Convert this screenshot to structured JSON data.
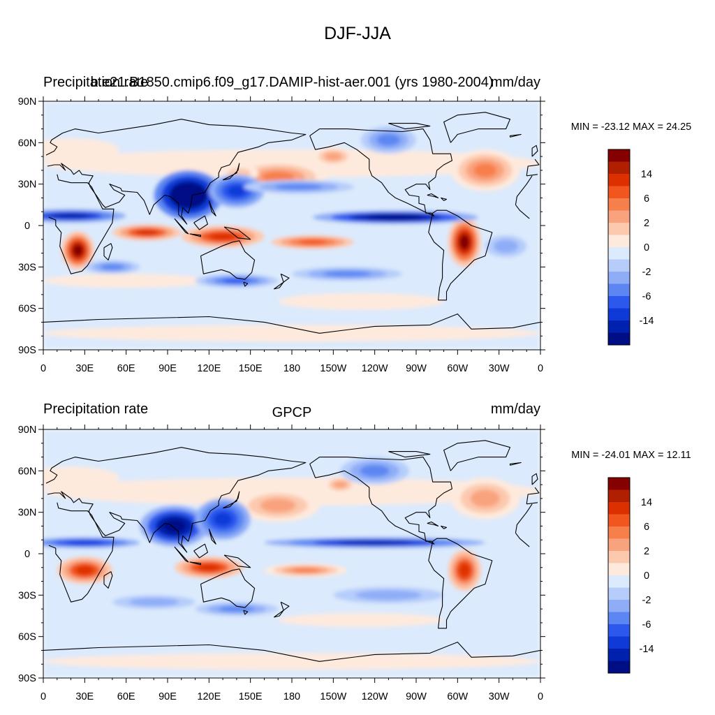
{
  "figure_title": "DJF-JJA",
  "colors": {
    "levels": [
      "#850000",
      "#b02000",
      "#dd3000",
      "#f2561f",
      "#f77f4b",
      "#f9a37e",
      "#fcc9ae",
      "#feeadd",
      "#dbeafc",
      "#b6cdfb",
      "#8fadf7",
      "#5c87f2",
      "#2c58ee",
      "#0f3ad8",
      "#0020ae",
      "#000e86"
    ],
    "coast": "#000000",
    "frame": "#000000"
  },
  "chart_data": [
    {
      "type": "heatmap",
      "title_left": "Precipitation rate",
      "title_center": "b.e21.B1850.cmip6.f09_g17.DAMIP-hist-aer.001 (yrs 1980-2004)",
      "title_right": "mm/day",
      "stats": "MIN = -23.12 MAX =  24.25",
      "min": -23.12,
      "max": 24.25,
      "xlabels": [
        "0",
        "30E",
        "60E",
        "90E",
        "120E",
        "150E",
        "180",
        "150W",
        "120W",
        "90W",
        "60W",
        "30W",
        "0"
      ],
      "ylabels": [
        "90N",
        "60N",
        "30N",
        "0",
        "30S",
        "60S",
        "90S"
      ],
      "xlim": [
        0,
        360
      ],
      "ylim": [
        -90,
        90
      ],
      "colorbar_labels": [
        "14",
        "6",
        "2",
        "0",
        "-2",
        "-6",
        "-14"
      ],
      "blobs": [
        {
          "lon": 170,
          "lat": 35,
          "rx": 35,
          "ry": 12,
          "v": 4
        },
        {
          "lon": 142,
          "lat": 38,
          "rx": 14,
          "ry": 6,
          "v": 2
        },
        {
          "lon": 210,
          "lat": 50,
          "rx": 15,
          "ry": 7,
          "v": 3
        },
        {
          "lon": 320,
          "lat": 40,
          "rx": 25,
          "ry": 15,
          "v": 4
        },
        {
          "lon": 20,
          "lat": 55,
          "rx": 35,
          "ry": 8,
          "v": 1
        },
        {
          "lon": 25,
          "lat": -18,
          "rx": 12,
          "ry": 14,
          "v": 8
        },
        {
          "lon": 75,
          "lat": -5,
          "rx": 25,
          "ry": 6,
          "v": 6
        },
        {
          "lon": 130,
          "lat": -8,
          "rx": 30,
          "ry": 8,
          "v": 6
        },
        {
          "lon": 195,
          "lat": -12,
          "rx": 30,
          "ry": 5,
          "v": 5
        },
        {
          "lon": 305,
          "lat": -12,
          "rx": 12,
          "ry": 18,
          "v": 8
        },
        {
          "lon": 60,
          "lat": -40,
          "rx": 60,
          "ry": 5,
          "v": 1
        },
        {
          "lon": 230,
          "lat": -55,
          "rx": 60,
          "ry": 6,
          "v": 1
        },
        {
          "lon": 105,
          "lat": 22,
          "rx": 25,
          "ry": 18,
          "v": -9
        },
        {
          "lon": 140,
          "lat": 25,
          "rx": 20,
          "ry": 12,
          "v": -5
        },
        {
          "lon": 20,
          "lat": 7,
          "rx": 40,
          "ry": 5,
          "v": -6
        },
        {
          "lon": 255,
          "lat": 6,
          "rx": 60,
          "ry": 5,
          "v": -8
        },
        {
          "lon": 185,
          "lat": 28,
          "rx": 40,
          "ry": 5,
          "v": -3
        },
        {
          "lon": 250,
          "lat": 62,
          "rx": 20,
          "ry": 10,
          "v": -3
        },
        {
          "lon": 140,
          "lat": -40,
          "rx": 30,
          "ry": 5,
          "v": -4
        },
        {
          "lon": 220,
          "lat": -35,
          "rx": 40,
          "ry": 5,
          "v": -3
        },
        {
          "lon": 50,
          "lat": -30,
          "rx": 20,
          "ry": 5,
          "v": -3
        },
        {
          "lon": 335,
          "lat": -15,
          "rx": 15,
          "ry": 8,
          "v": -2
        }
      ]
    },
    {
      "type": "heatmap",
      "title_left": "Precipitation rate",
      "title_center": "GPCP",
      "title_right": "mm/day",
      "stats": "MIN = -24.01 MAX =  12.11",
      "min": -24.01,
      "max": 12.11,
      "xlabels": [
        "0",
        "30E",
        "60E",
        "90E",
        "120E",
        "150E",
        "180",
        "150W",
        "120W",
        "90W",
        "60W",
        "30W",
        "0"
      ],
      "ylabels": [
        "90N",
        "60N",
        "30N",
        "0",
        "30S",
        "60S",
        "90S"
      ],
      "xlim": [
        0,
        360
      ],
      "ylim": [
        -90,
        90
      ],
      "colorbar_labels": [
        "14",
        "6",
        "2",
        "0",
        "-2",
        "-6",
        "-14"
      ],
      "blobs": [
        {
          "lon": 170,
          "lat": 35,
          "rx": 30,
          "ry": 12,
          "v": 3
        },
        {
          "lon": 215,
          "lat": 50,
          "rx": 12,
          "ry": 6,
          "v": 3
        },
        {
          "lon": 320,
          "lat": 40,
          "rx": 25,
          "ry": 15,
          "v": 3
        },
        {
          "lon": 20,
          "lat": 55,
          "rx": 35,
          "ry": 8,
          "v": 1
        },
        {
          "lon": 30,
          "lat": -12,
          "rx": 20,
          "ry": 10,
          "v": 6
        },
        {
          "lon": 120,
          "lat": -10,
          "rx": 25,
          "ry": 8,
          "v": 6
        },
        {
          "lon": 190,
          "lat": -12,
          "rx": 30,
          "ry": 5,
          "v": 4
        },
        {
          "lon": 305,
          "lat": -12,
          "rx": 12,
          "ry": 15,
          "v": 6
        },
        {
          "lon": 230,
          "lat": -48,
          "rx": 60,
          "ry": 5,
          "v": 1
        },
        {
          "lon": 95,
          "lat": 20,
          "rx": 25,
          "ry": 15,
          "v": -8
        },
        {
          "lon": 130,
          "lat": 25,
          "rx": 20,
          "ry": 15,
          "v": -5
        },
        {
          "lon": 240,
          "lat": 8,
          "rx": 80,
          "ry": 4,
          "v": -6
        },
        {
          "lon": 30,
          "lat": 8,
          "rx": 40,
          "ry": 4,
          "v": -5
        },
        {
          "lon": 240,
          "lat": 60,
          "rx": 25,
          "ry": 10,
          "v": -3
        },
        {
          "lon": 140,
          "lat": -40,
          "rx": 30,
          "ry": 5,
          "v": -3
        },
        {
          "lon": 250,
          "lat": -30,
          "rx": 40,
          "ry": 6,
          "v": -2
        },
        {
          "lon": 80,
          "lat": -35,
          "rx": 30,
          "ry": 5,
          "v": -2
        }
      ]
    }
  ],
  "coastlines": [
    [
      [
        -18,
        15
      ],
      [
        -17,
        21
      ],
      [
        -10,
        30
      ],
      [
        -6,
        36
      ],
      [
        10,
        37
      ],
      [
        11,
        33
      ],
      [
        20,
        31
      ],
      [
        32,
        31
      ],
      [
        35,
        28
      ],
      [
        43,
        12
      ],
      [
        51,
        12
      ],
      [
        50,
        2
      ],
      [
        40,
        -15
      ],
      [
        35,
        -24
      ],
      [
        32,
        -29
      ],
      [
        28,
        -33
      ],
      [
        20,
        -35
      ],
      [
        18,
        -30
      ],
      [
        12,
        -15
      ],
      [
        13,
        -5
      ],
      [
        9,
        0
      ],
      [
        9,
        4
      ],
      [
        4,
        6
      ],
      [
        -8,
        5
      ],
      [
        -15,
        11
      ],
      [
        -18,
        15
      ]
    ],
    [
      [
        44,
        -16
      ],
      [
        49,
        -13
      ],
      [
        50,
        -16
      ],
      [
        47,
        -25
      ],
      [
        44,
        -22
      ],
      [
        44,
        -16
      ]
    ],
    [
      [
        -10,
        36
      ],
      [
        -9,
        43
      ],
      [
        -1,
        44
      ],
      [
        -4,
        48
      ],
      [
        2,
        51
      ],
      [
        8,
        54
      ],
      [
        10,
        57
      ],
      [
        5,
        60
      ],
      [
        6,
        62
      ],
      [
        14,
        67
      ],
      [
        23,
        70
      ],
      [
        40,
        67
      ],
      [
        60,
        70
      ],
      [
        80,
        73
      ],
      [
        100,
        77
      ],
      [
        120,
        73
      ],
      [
        140,
        72
      ],
      [
        160,
        70
      ],
      [
        180,
        67
      ],
      [
        190,
        66
      ],
      [
        180,
        62
      ],
      [
        163,
        60
      ],
      [
        156,
        57
      ],
      [
        141,
        53
      ],
      [
        135,
        44
      ],
      [
        129,
        42
      ],
      [
        127,
        38
      ],
      [
        127,
        35
      ],
      [
        121,
        31
      ],
      [
        117,
        24
      ],
      [
        108,
        22
      ],
      [
        107,
        16
      ],
      [
        105,
        9
      ],
      [
        101,
        13
      ],
      [
        100,
        7
      ],
      [
        104,
        1
      ],
      [
        98,
        8
      ],
      [
        98,
        16
      ],
      [
        92,
        21
      ],
      [
        88,
        22
      ],
      [
        80,
        15
      ],
      [
        77,
        8
      ],
      [
        73,
        18
      ],
      [
        68,
        24
      ],
      [
        57,
        25
      ],
      [
        56,
        27
      ],
      [
        48,
        30
      ],
      [
        51,
        26
      ],
      [
        57,
        23
      ],
      [
        59,
        22
      ],
      [
        55,
        17
      ],
      [
        45,
        13
      ],
      [
        43,
        15
      ],
      [
        39,
        21
      ],
      [
        34,
        28
      ],
      [
        33,
        31
      ],
      [
        36,
        36
      ],
      [
        28,
        37
      ],
      [
        26,
        40
      ],
      [
        22,
        37
      ],
      [
        20,
        40
      ],
      [
        13,
        45
      ],
      [
        16,
        40
      ],
      [
        12,
        44
      ],
      [
        8,
        44
      ],
      [
        3,
        43
      ],
      [
        -2,
        37
      ],
      [
        -10,
        36
      ]
    ],
    [
      [
        95,
        5
      ],
      [
        105,
        -6
      ],
      [
        103,
        -5
      ],
      [
        95,
        5
      ]
    ],
    [
      [
        106,
        -6
      ],
      [
        114,
        -7
      ],
      [
        114,
        -8
      ],
      [
        106,
        -6
      ]
    ],
    [
      [
        109,
        2
      ],
      [
        113,
        -3
      ],
      [
        119,
        1
      ],
      [
        117,
        7
      ],
      [
        109,
        2
      ]
    ],
    [
      [
        120,
        18
      ],
      [
        122,
        13
      ],
      [
        125,
        7
      ],
      [
        122,
        10
      ],
      [
        120,
        18
      ]
    ],
    [
      [
        131,
        -1
      ],
      [
        141,
        -3
      ],
      [
        150,
        -10
      ],
      [
        141,
        -9
      ],
      [
        131,
        -1
      ]
    ],
    [
      [
        130,
        33
      ],
      [
        135,
        34
      ],
      [
        141,
        40
      ],
      [
        142,
        45
      ],
      [
        140,
        38
      ],
      [
        130,
        33
      ]
    ],
    [
      [
        114,
        -22
      ],
      [
        129,
        -15
      ],
      [
        137,
        -12
      ],
      [
        142,
        -11
      ],
      [
        146,
        -19
      ],
      [
        153,
        -25
      ],
      [
        151,
        -34
      ],
      [
        146,
        -39
      ],
      [
        140,
        -38
      ],
      [
        135,
        -34
      ],
      [
        129,
        -32
      ],
      [
        116,
        -35
      ],
      [
        114,
        -22
      ]
    ],
    [
      [
        145,
        -41
      ],
      [
        148,
        -42
      ],
      [
        146,
        -44
      ],
      [
        145,
        -41
      ]
    ],
    [
      [
        172,
        -35
      ],
      [
        178,
        -38
      ],
      [
        174,
        -41
      ],
      [
        172,
        -35
      ]
    ],
    [
      [
        167,
        -46
      ],
      [
        174,
        -41
      ],
      [
        171,
        -45
      ],
      [
        167,
        -46
      ]
    ],
    [
      [
        193,
        65
      ],
      [
        200,
        70
      ],
      [
        220,
        70
      ],
      [
        235,
        69
      ],
      [
        260,
        68
      ],
      [
        275,
        70
      ],
      [
        280,
        62
      ],
      [
        282,
        52
      ],
      [
        295,
        52
      ],
      [
        296,
        47
      ],
      [
        290,
        44
      ],
      [
        285,
        40
      ],
      [
        284,
        35
      ],
      [
        279,
        31
      ],
      [
        280,
        26
      ],
      [
        277,
        30
      ],
      [
        270,
        30
      ],
      [
        262,
        26
      ],
      [
        265,
        22
      ],
      [
        272,
        21
      ],
      [
        272,
        16
      ],
      [
        276,
        15
      ],
      [
        277,
        9
      ],
      [
        281,
        9
      ],
      [
        283,
        7
      ],
      [
        276,
        10
      ],
      [
        270,
        13
      ],
      [
        264,
        16
      ],
      [
        255,
        20
      ],
      [
        250,
        24
      ],
      [
        245,
        31
      ],
      [
        238,
        36
      ],
      [
        236,
        41
      ],
      [
        236,
        48
      ],
      [
        227,
        55
      ],
      [
        218,
        60
      ],
      [
        207,
        57
      ],
      [
        197,
        55
      ],
      [
        195,
        60
      ],
      [
        193,
        65
      ]
    ],
    [
      [
        282,
        9
      ],
      [
        285,
        11
      ],
      [
        292,
        11
      ],
      [
        300,
        7
      ],
      [
        310,
        0
      ],
      [
        325,
        -5
      ],
      [
        320,
        -22
      ],
      [
        312,
        -25
      ],
      [
        302,
        -35
      ],
      [
        295,
        -42
      ],
      [
        292,
        -48
      ],
      [
        292,
        -54
      ],
      [
        286,
        -54
      ],
      [
        287,
        -45
      ],
      [
        289,
        -38
      ],
      [
        289,
        -28
      ],
      [
        290,
        -18
      ],
      [
        283,
        -12
      ],
      [
        279,
        -5
      ],
      [
        280,
        0
      ],
      [
        282,
        9
      ]
    ],
    [
      [
        278,
        22
      ],
      [
        283,
        21
      ],
      [
        286,
        20
      ],
      [
        281,
        23
      ],
      [
        278,
        22
      ]
    ],
    [
      [
        290,
        18
      ],
      [
        292,
        19
      ],
      [
        288,
        20
      ],
      [
        290,
        18
      ]
    ],
    [
      [
        295,
        60
      ],
      [
        300,
        66
      ],
      [
        315,
        70
      ],
      [
        335,
        70
      ],
      [
        338,
        77
      ],
      [
        320,
        82
      ],
      [
        300,
        80
      ],
      [
        290,
        75
      ],
      [
        295,
        60
      ]
    ],
    [
      [
        338,
        64
      ],
      [
        346,
        66
      ],
      [
        338,
        65
      ],
      [
        338,
        64
      ]
    ],
    [
      [
        354,
        50
      ],
      [
        358,
        54
      ],
      [
        357,
        58
      ],
      [
        354,
        56
      ],
      [
        354,
        50
      ]
    ],
    [
      [
        250,
        74
      ],
      [
        270,
        74
      ],
      [
        280,
        72
      ],
      [
        262,
        70
      ],
      [
        250,
        74
      ]
    ],
    [
      [
        0,
        -70
      ],
      [
        40,
        -68
      ],
      [
        80,
        -67
      ],
      [
        120,
        -66
      ],
      [
        160,
        -70
      ],
      [
        200,
        -78
      ],
      [
        240,
        -73
      ],
      [
        280,
        -72
      ],
      [
        300,
        -64
      ],
      [
        310,
        -75
      ],
      [
        340,
        -74
      ],
      [
        360,
        -70
      ]
    ]
  ]
}
